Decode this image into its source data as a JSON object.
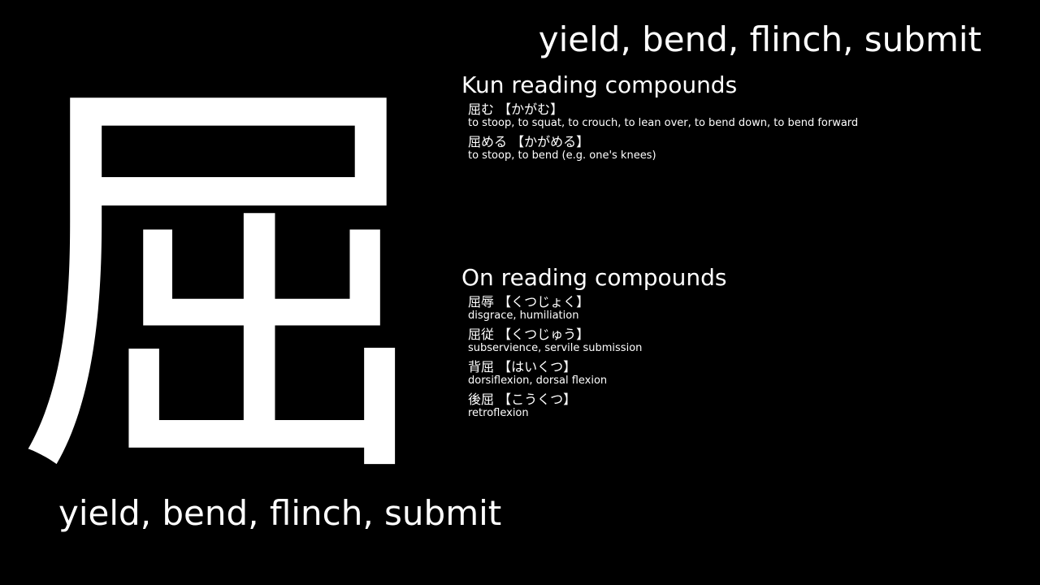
{
  "kanji": "屈",
  "meaning_top": "yield, bend, flinch, submit",
  "meaning_bottom": "yield, bend, flinch, submit",
  "kun_section": {
    "title": "Kun reading compounds",
    "entries": [
      {
        "word": "屈む 【かがむ】",
        "definition": "to stoop, to squat, to crouch, to lean over, to bend down, to bend forward"
      },
      {
        "word": "屈める 【かがめる】",
        "definition": "to stoop, to bend (e.g. one's knees)"
      }
    ]
  },
  "on_section": {
    "title": "On reading compounds",
    "entries": [
      {
        "word": "屈辱 【くつじょく】",
        "definition": "disgrace, humiliation"
      },
      {
        "word": "屈従 【くつじゅう】",
        "definition": "subservience, servile submission"
      },
      {
        "word": "背屈 【はいくつ】",
        "definition": "dorsiflexion, dorsal flexion"
      },
      {
        "word": "後屈 【こうくつ】",
        "definition": "retroflexion"
      }
    ]
  }
}
